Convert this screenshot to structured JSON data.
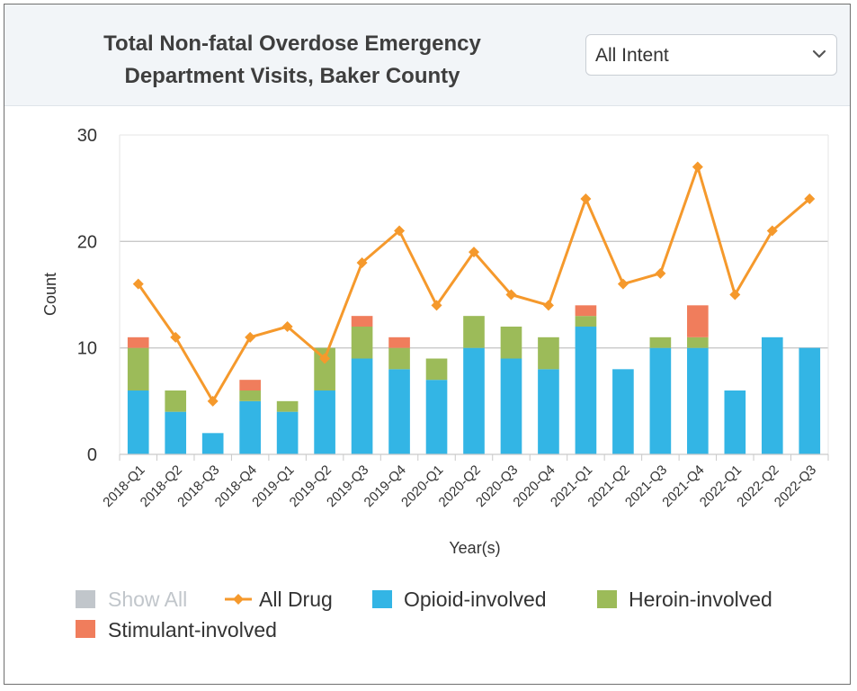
{
  "title_line1": "Total Non-fatal Overdose Emergency",
  "title_line2": "Department Visits, Baker County",
  "intent_select": {
    "selected": "All Intent"
  },
  "colors": {
    "opioid": "#33b5e5",
    "heroin": "#9cbb59",
    "stimulant": "#f07d5c",
    "all_drug": "#f5992c",
    "show_all": "#c1c6cb"
  },
  "legend": {
    "show_all": "Show All",
    "all_drug": "All Drug",
    "opioid": "Opioid-involved",
    "heroin": "Heroin-involved",
    "stimulant": "Stimulant-involved"
  },
  "chart_data": {
    "type": "bar",
    "stacked": true,
    "xlabel": "Year(s)",
    "ylabel": "Count",
    "ylim": [
      0,
      30
    ],
    "yticks": [
      0,
      10,
      20,
      30
    ],
    "grid": true,
    "legend_position": "bottom",
    "categories": [
      "2018-Q1",
      "2018-Q2",
      "2018-Q3",
      "2018-Q4",
      "2019-Q1",
      "2019-Q2",
      "2019-Q3",
      "2019-Q4",
      "2020-Q1",
      "2020-Q2",
      "2020-Q3",
      "2020-Q4",
      "2021-Q1",
      "2021-Q2",
      "2021-Q3",
      "2021-Q4",
      "2022-Q1",
      "2022-Q2",
      "2022-Q3"
    ],
    "series": [
      {
        "name": "Opioid-involved",
        "type": "bar",
        "values": [
          6,
          4,
          2,
          5,
          4,
          6,
          9,
          8,
          7,
          10,
          9,
          8,
          12,
          8,
          10,
          10,
          6,
          11,
          10
        ]
      },
      {
        "name": "Heroin-involved",
        "type": "bar",
        "values": [
          4,
          2,
          0,
          1,
          1,
          4,
          3,
          2,
          2,
          3,
          3,
          3,
          1,
          0,
          1,
          1,
          0,
          0,
          0
        ]
      },
      {
        "name": "Stimulant-involved",
        "type": "bar",
        "values": [
          1,
          0,
          0,
          1,
          0,
          0,
          1,
          1,
          0,
          0,
          0,
          0,
          1,
          0,
          0,
          3,
          0,
          0,
          0
        ]
      },
      {
        "name": "All Drug",
        "type": "line",
        "values": [
          16,
          11,
          5,
          11,
          12,
          9,
          18,
          21,
          14,
          19,
          15,
          14,
          24,
          16,
          17,
          27,
          15,
          21,
          24
        ]
      }
    ]
  }
}
